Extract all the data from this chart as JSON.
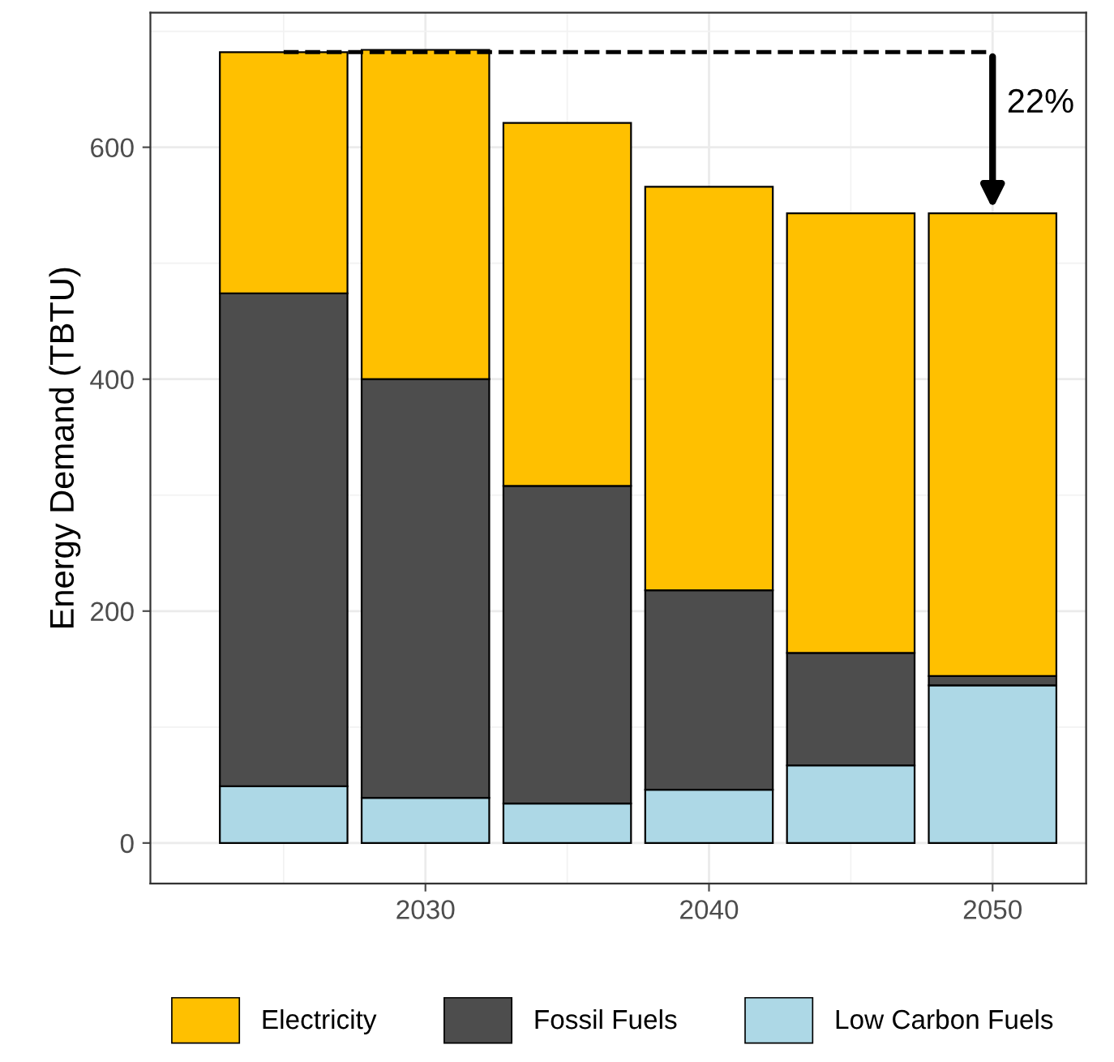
{
  "chart_data": {
    "type": "bar",
    "stacked": true,
    "ylabel": "Energy Demand (TBTU)",
    "x": [
      2025,
      2030,
      2035,
      2040,
      2045,
      2050
    ],
    "series": [
      {
        "name": "Low Carbon Fuels",
        "color": "#add8e6",
        "values": [
          49,
          39,
          34,
          46,
          67,
          136
        ]
      },
      {
        "name": "Fossil Fuels",
        "color": "#4d4d4d",
        "values": [
          425,
          361,
          274,
          172,
          97,
          8
        ]
      },
      {
        "name": "Electricity",
        "color": "#ffc000",
        "values": [
          208,
          284,
          313,
          348,
          379,
          399
        ]
      }
    ],
    "xlim": [
      2020.3,
      2053.3
    ],
    "xticks": [
      2030,
      2040,
      2050
    ],
    "ylim": [
      -35,
      716
    ],
    "yticks": [
      0,
      200,
      400,
      600
    ],
    "ref_lines": [
      {
        "axis": "y",
        "value": 682,
        "label": null,
        "color": "#000000",
        "line_style": "dashed"
      }
    ],
    "annotations": [
      {
        "text": "22%",
        "x": 2050,
        "y": 543
      }
    ],
    "grid": true,
    "legend": "bottom"
  }
}
